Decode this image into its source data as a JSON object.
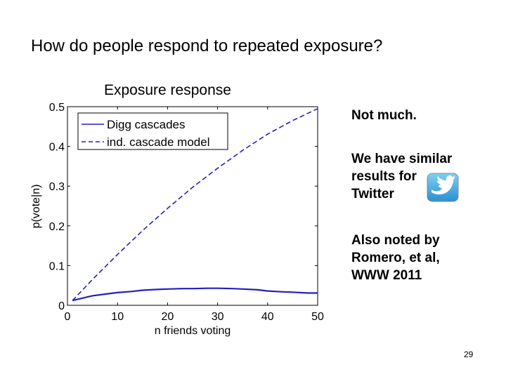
{
  "slide": {
    "title": "How do people respond to repeated exposure?",
    "side_text_1": "Not much.",
    "side_text_2": [
      "We have similar",
      "results for",
      "Twitter"
    ],
    "side_text_3": [
      "Also noted by",
      "Romero, et al,",
      "WWW 2011"
    ],
    "logo_icon": "twitter-bird-icon",
    "page_number": "29"
  },
  "chart_data": {
    "type": "line",
    "title": "Exposure response",
    "xlabel": "n friends voting",
    "ylabel": "p(vote|n)",
    "xlim": [
      0,
      50
    ],
    "ylim": [
      0,
      0.5
    ],
    "xticks": [
      "0",
      "10",
      "20",
      "30",
      "40",
      "50"
    ],
    "yticks": [
      "0",
      "0.1",
      "0.2",
      "0.3",
      "0.4",
      "0.5"
    ],
    "legend_position": "top-left",
    "series": [
      {
        "name": "Digg cascades",
        "style": "solid",
        "color": "#2020c0",
        "x": [
          1,
          3,
          5,
          8,
          10,
          13,
          15,
          18,
          20,
          23,
          25,
          28,
          30,
          33,
          35,
          38,
          40,
          43,
          45,
          48,
          50
        ],
        "y": [
          0.012,
          0.018,
          0.024,
          0.029,
          0.032,
          0.035,
          0.038,
          0.04,
          0.041,
          0.042,
          0.042,
          0.043,
          0.043,
          0.042,
          0.041,
          0.039,
          0.036,
          0.034,
          0.033,
          0.031,
          0.031
        ]
      },
      {
        "name": "ind. cascade model",
        "style": "dashed",
        "color": "#2020c0",
        "x": [
          1,
          5,
          10,
          15,
          20,
          25,
          30,
          35,
          40,
          45,
          50
        ],
        "y": [
          0.012,
          0.065,
          0.128,
          0.188,
          0.244,
          0.297,
          0.345,
          0.39,
          0.431,
          0.465,
          0.495
        ]
      }
    ]
  }
}
